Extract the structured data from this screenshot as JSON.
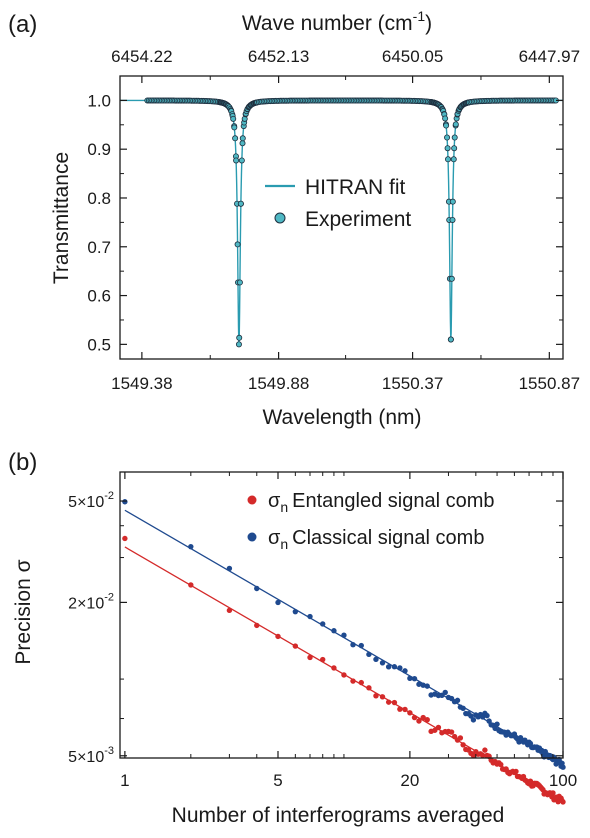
{
  "chart_data": [
    {
      "panel_label": "(a)",
      "type": "line",
      "xlabel": "Wavelength (nm)",
      "ylabel": "Transmittance",
      "top_xlabel": {
        "main": "Wave number (cm",
        "sup": "-1",
        "close": ")"
      },
      "xlim": [
        1549.3,
        1550.92
      ],
      "ylim": [
        0.47,
        1.05
      ],
      "x_ticks": [
        1549.38,
        1549.88,
        1550.37,
        1550.87
      ],
      "x_tick_labels": [
        "1549.38",
        "1549.88",
        "1550.37",
        "1550.87"
      ],
      "top_x_ticks": [
        1549.38,
        1549.88,
        1550.37,
        1550.87
      ],
      "top_x_tick_labels": [
        "6454.22",
        "6452.13",
        "6450.05",
        "6447.97"
      ],
      "y_ticks": [
        0.5,
        0.6,
        0.7,
        0.8,
        0.9,
        1.0
      ],
      "y_tick_labels": [
        "0.5",
        "0.6",
        "0.7",
        "0.8",
        "0.9",
        "1.0"
      ],
      "grid": false,
      "legend_position": "center",
      "dips": [
        {
          "center": 1549.735,
          "depth": 0.5,
          "width": 0.006
        },
        {
          "center": 1550.51,
          "depth": 0.49,
          "width": 0.006
        }
      ],
      "experiment_x_range": [
        1549.4,
        1550.9
      ],
      "series": [
        {
          "name": "HITRAN fit",
          "kind": "line",
          "color": "#2a9bb0"
        },
        {
          "name": "Experiment",
          "kind": "markers",
          "color": "#4fb8c4",
          "edge_color": "#1f2f3f"
        }
      ]
    },
    {
      "panel_label": "(b)",
      "type": "scatter",
      "xlabel": "Number of interferograms averaged",
      "ylabel": "Precision σ",
      "x_scale": "log",
      "y_scale": "log",
      "xlim": [
        0.95,
        100
      ],
      "ylim": [
        0.0049,
        0.065
      ],
      "x_ticks": [
        1,
        5,
        20,
        100
      ],
      "x_tick_labels": [
        "1",
        "5",
        "20",
        "100"
      ],
      "y_ticks": [
        0.005,
        0.02,
        0.05
      ],
      "y_tick_labels": [
        {
          "mant": "5×10",
          "exp": "-3"
        },
        {
          "mant": "2×10",
          "exp": "-2"
        },
        {
          "mant": "5×10",
          "exp": "-2"
        }
      ],
      "grid": false,
      "legend_position": "top-right",
      "series": [
        {
          "symbol": "σ",
          "sub": "n",
          "name": "Entangled signal comb",
          "color": "#d42a2a",
          "fit_at_1": 0.033,
          "slope": -0.5
        },
        {
          "symbol": "σ",
          "sub": "n",
          "name": "Classical signal comb",
          "color": "#1f4a8f",
          "fit_at_1": 0.046,
          "slope": -0.5
        }
      ]
    }
  ]
}
